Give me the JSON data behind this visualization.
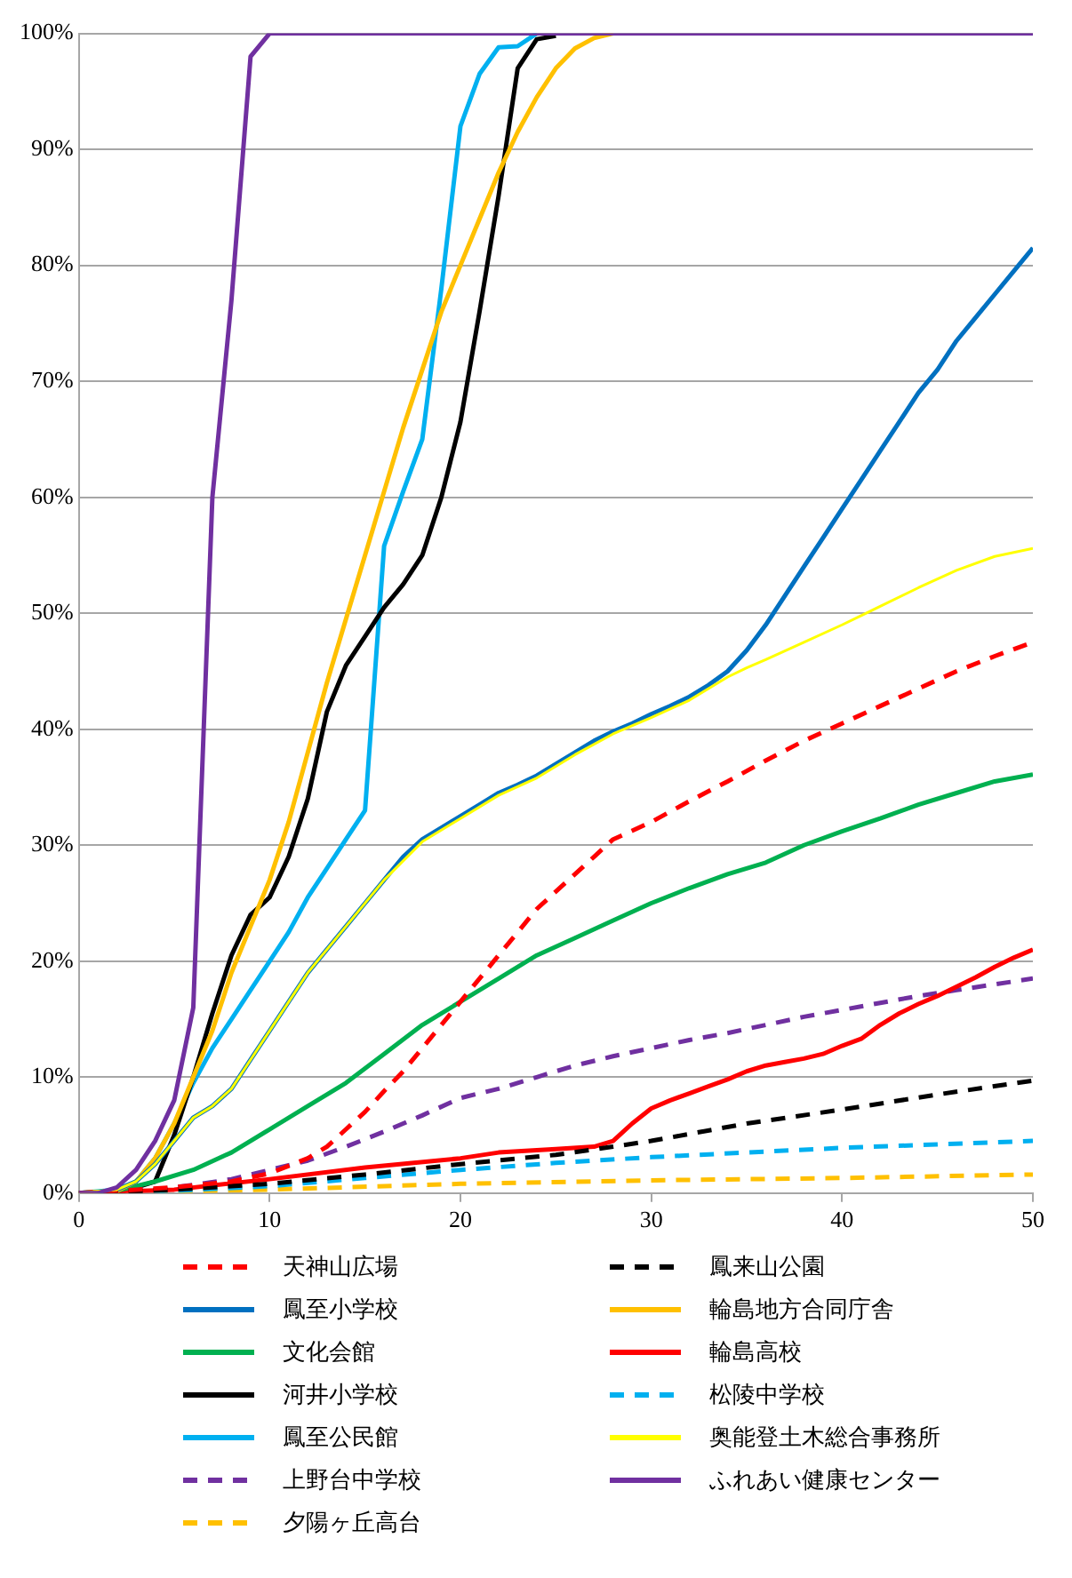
{
  "chart_data": {
    "type": "line",
    "xlim": [
      0,
      50
    ],
    "xticks": [
      0,
      10,
      20,
      30,
      40,
      50
    ],
    "ylim": [
      0,
      100
    ],
    "yticks": [
      {
        "value": 0,
        "label": "0%"
      },
      {
        "value": 10,
        "label": "10%"
      },
      {
        "value": 20,
        "label": "20%"
      },
      {
        "value": 30,
        "label": "30%"
      },
      {
        "value": 40,
        "label": "40%"
      },
      {
        "value": 50,
        "label": "50%"
      },
      {
        "value": 60,
        "label": "60%"
      },
      {
        "value": 70,
        "label": "70%"
      },
      {
        "value": 80,
        "label": "80%"
      },
      {
        "value": 90,
        "label": "90%"
      },
      {
        "value": 100,
        "label": "100%"
      }
    ],
    "grid": "y",
    "legend": "bottom",
    "marker": "none",
    "series": [
      {
        "name": "天神山広場",
        "color": "#ff0000",
        "line_style": "dashed",
        "x": [
          0,
          3,
          5,
          8,
          10,
          12,
          13,
          14,
          15,
          16,
          17,
          18,
          19,
          20,
          21,
          22,
          23,
          24,
          25,
          26,
          27,
          28,
          30,
          32,
          34,
          36,
          38,
          40,
          42,
          44,
          46,
          48,
          50
        ],
        "values": [
          0,
          0.3,
          0.5,
          1,
          1.7,
          3,
          4,
          5.5,
          7,
          8.8,
          10.5,
          12.5,
          14.5,
          16.5,
          18.5,
          20.5,
          22.5,
          24.5,
          26,
          27.5,
          29,
          30.5,
          32,
          33.8,
          35.5,
          37.3,
          39,
          40.5,
          42,
          43.5,
          45,
          46.3,
          47.5
        ]
      },
      {
        "name": "鳳来山公園",
        "color": "#000000",
        "line_style": "dashed",
        "x": [
          0,
          5,
          10,
          15,
          20,
          25,
          28,
          30,
          35,
          40,
          45,
          50
        ],
        "values": [
          0,
          0.3,
          0.8,
          1.6,
          2.5,
          3.3,
          4,
          4.5,
          6,
          7.2,
          8.5,
          9.7
        ]
      },
      {
        "name": "鳳至小学校",
        "color": "#0070c0",
        "line_style": "solid",
        "x": [
          0,
          1,
          2,
          3,
          4,
          5,
          6,
          7,
          8,
          9,
          10,
          11,
          12,
          13,
          14,
          15,
          16,
          17,
          18,
          19,
          20,
          21,
          22,
          23,
          24,
          25,
          26,
          27,
          28,
          29,
          30,
          31,
          32,
          33,
          34,
          35,
          36,
          37,
          38,
          39,
          40,
          41,
          42,
          43,
          44,
          45,
          46,
          47,
          48,
          49,
          50
        ],
        "values": [
          0,
          0,
          0.3,
          1,
          2.5,
          4.5,
          6.5,
          7.5,
          9,
          11.5,
          14,
          16.5,
          19,
          21,
          23,
          25,
          27,
          29,
          30.5,
          31.5,
          32.5,
          33.5,
          34.5,
          35.2,
          36,
          37,
          38,
          39,
          39.8,
          40.5,
          41.3,
          42,
          42.8,
          43.8,
          45,
          46.8,
          49,
          51.5,
          54,
          56.5,
          59,
          61.5,
          64,
          66.5,
          69,
          71,
          73.5,
          75.5,
          77.5,
          79.5,
          81.5
        ]
      },
      {
        "name": "輪島地方合同庁舎",
        "color": "#ffc000",
        "line_style": "solid",
        "x": [
          0,
          2,
          3,
          4,
          5,
          6,
          7,
          8,
          9,
          10,
          11,
          12,
          13,
          14,
          15,
          16,
          17,
          18,
          19,
          20,
          21,
          22,
          23,
          24,
          25,
          26,
          27,
          28
        ],
        "values": [
          0,
          0.2,
          1,
          3,
          6,
          10,
          14,
          19,
          23,
          27,
          32,
          38,
          44,
          49.5,
          55,
          60.5,
          66,
          71,
          76,
          80,
          84,
          88,
          91.5,
          94.5,
          97,
          98.7,
          99.6,
          100
        ]
      },
      {
        "name": "文化会館",
        "color": "#00b050",
        "line_style": "solid",
        "x": [
          0,
          2,
          4,
          6,
          8,
          10,
          12,
          14,
          16,
          18,
          20,
          22,
          24,
          26,
          28,
          30,
          32,
          34,
          36,
          38,
          40,
          42,
          44,
          46,
          48,
          50
        ],
        "values": [
          0,
          0.2,
          1,
          2,
          3.5,
          5.5,
          7.5,
          9.5,
          12,
          14.5,
          16.5,
          18.5,
          20.5,
          22,
          23.5,
          25,
          26.3,
          27.5,
          28.5,
          30,
          31.2,
          32.3,
          33.5,
          34.5,
          35.5,
          36.1
        ]
      },
      {
        "name": "輪島高校",
        "color": "#ff0000",
        "line_style": "solid",
        "x": [
          0,
          5,
          10,
          15,
          20,
          22,
          25,
          27,
          28,
          29,
          30,
          31,
          32,
          33,
          34,
          35,
          36,
          37,
          38,
          39,
          40,
          41,
          42,
          43,
          44,
          45,
          46,
          47,
          48,
          49,
          50
        ],
        "values": [
          0,
          0.3,
          1.2,
          2.2,
          3,
          3.5,
          3.8,
          4,
          4.5,
          6,
          7.3,
          8,
          8.6,
          9.2,
          9.8,
          10.5,
          11,
          11.3,
          11.6,
          12,
          12.7,
          13.3,
          14.5,
          15.5,
          16.3,
          17,
          17.8,
          18.6,
          19.5,
          20.3,
          21
        ]
      },
      {
        "name": "河井小学校",
        "color": "#000000",
        "line_style": "solid",
        "x": [
          0,
          2,
          3,
          4,
          5,
          6,
          7,
          8,
          9,
          10,
          11,
          12,
          13,
          14,
          15,
          16,
          17,
          18,
          19,
          20,
          21,
          22,
          23,
          24,
          25
        ],
        "values": [
          0,
          0,
          0.5,
          1,
          5,
          10,
          15.5,
          20.5,
          24,
          25.5,
          29,
          34,
          41.5,
          45.5,
          48,
          50.5,
          52.5,
          55,
          60,
          66.5,
          76,
          86,
          97,
          99.5,
          99.8
        ]
      },
      {
        "name": "松陵中学校",
        "color": "#00b0f0",
        "line_style": "dashed",
        "x": [
          0,
          5,
          10,
          15,
          20,
          25,
          30,
          35,
          40,
          45,
          50
        ],
        "values": [
          0,
          0.2,
          0.6,
          1.3,
          2,
          2.6,
          3.1,
          3.5,
          3.9,
          4.2,
          4.5
        ]
      },
      {
        "name": "鳳至公民館",
        "color": "#00b0f0",
        "line_style": "solid",
        "x": [
          0,
          2,
          3,
          4,
          5,
          6,
          7,
          8,
          9,
          10,
          11,
          12,
          13,
          14,
          15,
          16,
          17,
          18,
          19,
          20,
          21,
          22,
          23,
          24
        ],
        "values": [
          0,
          0.3,
          1,
          3,
          6,
          9.5,
          12.5,
          15,
          17.5,
          20,
          22.5,
          25.5,
          28,
          30.5,
          33,
          55.8,
          60.5,
          65,
          78,
          92,
          96.5,
          98.8,
          98.9,
          100
        ]
      },
      {
        "name": "奥能登土木総合事務所",
        "color": "#ffff00",
        "line_style": "solid",
        "x": [
          0,
          2,
          3,
          4,
          5,
          6,
          7,
          8,
          9,
          10,
          12,
          14,
          16,
          18,
          20,
          22,
          24,
          26,
          28,
          30,
          32,
          33,
          34,
          35,
          36,
          38,
          40,
          41,
          42,
          44,
          46,
          48,
          50
        ],
        "values": [
          0,
          0.3,
          1,
          2.5,
          4.5,
          6.5,
          7.5,
          9,
          11.5,
          14,
          19,
          23,
          27,
          30.3,
          32.3,
          34.3,
          35.8,
          37.8,
          39.6,
          41,
          42.5,
          43.5,
          44.5,
          45.3,
          46,
          47.5,
          49,
          49.8,
          50.6,
          52.2,
          53.7,
          54.9,
          55.6
        ]
      },
      {
        "name": "上野台中学校",
        "color": "#7030a0",
        "line_style": "dashed",
        "x": [
          0,
          4,
          6,
          8,
          10,
          12,
          14,
          16,
          18,
          20,
          22,
          24,
          26,
          28,
          30,
          32,
          34,
          36,
          38,
          40,
          42,
          44,
          46,
          48,
          50
        ],
        "values": [
          0,
          0.3,
          0.7,
          1.2,
          2,
          2.8,
          4,
          5.3,
          6.7,
          8.2,
          9,
          10,
          11,
          11.8,
          12.5,
          13.2,
          13.8,
          14.5,
          15.2,
          15.8,
          16.4,
          17,
          17.5,
          18,
          18.5
        ]
      },
      {
        "name": "ふれあい健康センター",
        "color": "#7030a0",
        "line_style": "solid",
        "x": [
          0,
          1,
          2,
          3,
          4,
          5,
          6,
          7,
          8,
          9,
          10,
          50
        ],
        "values": [
          0,
          0,
          0.5,
          2,
          4.5,
          8,
          16,
          60,
          77,
          98,
          100,
          100
        ]
      },
      {
        "name": "夕陽ヶ丘高台",
        "color": "#ffc000",
        "line_style": "dashed",
        "x": [
          0,
          10,
          20,
          30,
          40,
          50
        ],
        "values": [
          0,
          0.3,
          0.8,
          1.1,
          1.3,
          1.6
        ]
      }
    ]
  }
}
